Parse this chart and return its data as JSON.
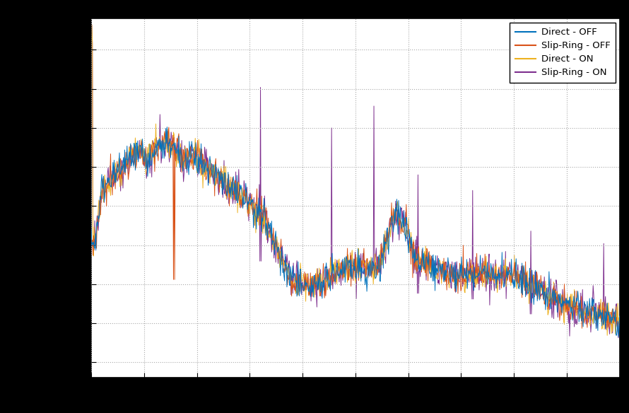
{
  "colors": {
    "direct_off": "#0072BD",
    "slipring_off": "#D95319",
    "direct_on": "#EDB120",
    "slipring_on": "#7E2F8E"
  },
  "legend_labels": [
    "Direct - OFF",
    "Slip-Ring - OFF",
    "Direct - ON",
    "Slip-Ring - ON"
  ],
  "figure_facecolor": "#000000",
  "axes_facecolor": "#FFFFFF",
  "n_points": 900,
  "seed": 1234
}
